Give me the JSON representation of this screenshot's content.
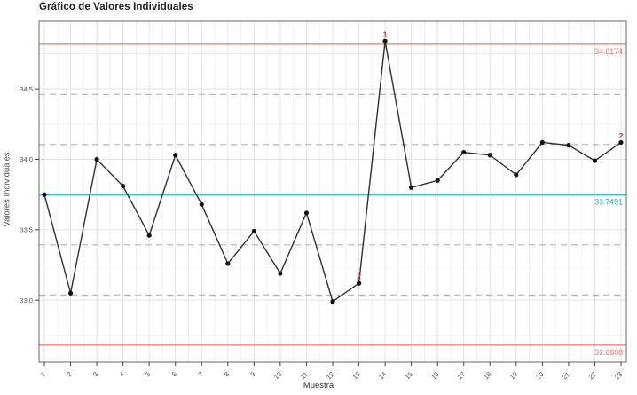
{
  "chart_data": {
    "type": "line",
    "chart_kind": "individuals-control-chart",
    "title": "Gráfico de Valores Individuales",
    "xlabel": "Muestra",
    "ylabel": "Valores Individuales",
    "x": [
      1,
      2,
      3,
      4,
      5,
      6,
      7,
      8,
      9,
      10,
      11,
      12,
      13,
      14,
      15,
      16,
      17,
      18,
      19,
      20,
      21,
      22,
      23
    ],
    "xticks": [
      "1",
      "2",
      "3",
      "4",
      "5",
      "6",
      "7",
      "8",
      "9",
      "10",
      "11",
      "12",
      "13",
      "14",
      "15",
      "16",
      "17",
      "18",
      "19",
      "20",
      "21",
      "22",
      "23"
    ],
    "values": [
      33.75,
      33.05,
      34.0,
      33.81,
      33.46,
      34.03,
      33.68,
      33.26,
      33.49,
      33.19,
      33.62,
      32.99,
      33.12,
      34.84,
      33.8,
      33.85,
      34.05,
      34.03,
      33.89,
      34.12,
      34.1,
      33.99,
      34.12
    ],
    "center_line": {
      "value": 33.7491,
      "label": "33.7491"
    },
    "upper_control_limit": {
      "value": 34.8174,
      "label": "34.8174"
    },
    "lower_control_limit": {
      "value": 32.6808,
      "label": "32.6808"
    },
    "sigma_zone_lines": [
      34.4613,
      34.1052,
      33.393,
      33.0369
    ],
    "violations": [
      {
        "sample": 13,
        "label": "2"
      },
      {
        "sample": 14,
        "label": "1"
      },
      {
        "sample": 23,
        "label": "2"
      }
    ],
    "yticks": [
      {
        "value": 33.0,
        "label": "33.0"
      },
      {
        "value": 33.5,
        "label": "33.5"
      },
      {
        "value": 34.0,
        "label": "34.0"
      },
      {
        "value": 34.5,
        "label": "34.5"
      }
    ],
    "ylim": [
      32.56,
      34.98
    ],
    "grid": true,
    "legend": false,
    "colors": {
      "limit_line": "#f5938c",
      "limit_label": "#f4766e",
      "center_line": "#30c3cd",
      "center_label": "#2ab9c4",
      "sigma_zone_line": "#b4b4b4",
      "data_line": "#2f2f2f",
      "point": "#111111",
      "violation_label": "#d93025",
      "grid_major": "#e3e3e3",
      "grid_minor": "#f1f1f1",
      "panel_border": "#7f7f7f",
      "tick_text": "#555555"
    }
  }
}
